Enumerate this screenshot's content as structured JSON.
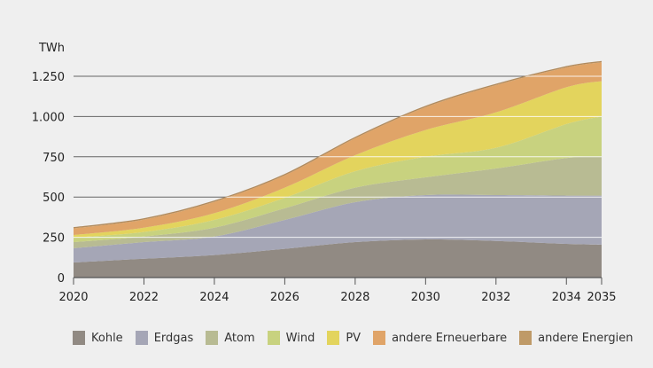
{
  "chart_data": {
    "type": "area",
    "stacked": true,
    "title": "",
    "ylabel": "TWh",
    "xlabel": "",
    "x": [
      2020,
      2022,
      2024,
      2026,
      2028,
      2030,
      2032,
      2034,
      2035
    ],
    "xticks": [
      "2020",
      "2022",
      "2024",
      "2026",
      "2028",
      "2030",
      "2032",
      "2034",
      "2035"
    ],
    "yticks": [
      0,
      250,
      500,
      750,
      1000,
      1250
    ],
    "ytick_labels": [
      "0",
      "250",
      "500",
      "750",
      "1.000",
      "1.250"
    ],
    "ylim": [
      0,
      1350
    ],
    "xlim": [
      2020,
      2035
    ],
    "grid": true,
    "legend_position": "bottom",
    "series": [
      {
        "name": "Kohle",
        "color": "#918a83",
        "values": [
          94,
          117,
          140,
          178,
          220,
          237,
          227,
          209,
          204
        ]
      },
      {
        "name": "Erdgas",
        "color": "#a5a6b6",
        "values": [
          88,
          103,
          115,
          180,
          248,
          275,
          285,
          300,
          305
        ]
      },
      {
        "name": "Atom",
        "color": "#b8bb93",
        "values": [
          38,
          35,
          55,
          72,
          90,
          110,
          165,
          233,
          241
        ]
      },
      {
        "name": "Wind",
        "color": "#c8d27f",
        "values": [
          28,
          28,
          48,
          65,
          102,
          128,
          129,
          211,
          250
        ]
      },
      {
        "name": "PV",
        "color": "#e3d45d",
        "values": [
          16,
          27,
          42,
          63,
          100,
          166,
          220,
          229,
          220
        ]
      },
      {
        "name": "andere Erneuerbare",
        "color": "#e0a468",
        "values": [
          41,
          50,
          70,
          77,
          105,
          142,
          169,
          123,
          117
        ]
      },
      {
        "name": "andere Energien",
        "color": "#bf9a68",
        "values": [
          5,
          5,
          5,
          5,
          5,
          5,
          5,
          5,
          5
        ]
      }
    ]
  }
}
